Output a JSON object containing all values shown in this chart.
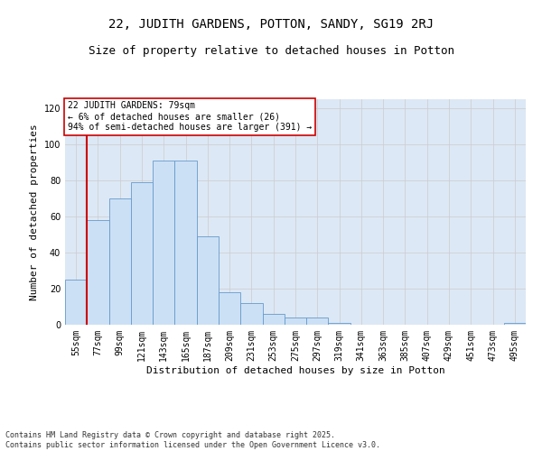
{
  "title": "22, JUDITH GARDENS, POTTON, SANDY, SG19 2RJ",
  "subtitle": "Size of property relative to detached houses in Potton",
  "xlabel": "Distribution of detached houses by size in Potton",
  "ylabel": "Number of detached properties",
  "categories": [
    "55sqm",
    "77sqm",
    "99sqm",
    "121sqm",
    "143sqm",
    "165sqm",
    "187sqm",
    "209sqm",
    "231sqm",
    "253sqm",
    "275sqm",
    "297sqm",
    "319sqm",
    "341sqm",
    "363sqm",
    "385sqm",
    "407sqm",
    "429sqm",
    "451sqm",
    "473sqm",
    "495sqm"
  ],
  "bar_heights": [
    25,
    58,
    70,
    79,
    91,
    91,
    49,
    18,
    12,
    6,
    4,
    4,
    1,
    0,
    0,
    0,
    0,
    0,
    0,
    0,
    1
  ],
  "bar_color": "#cce0f5",
  "bar_edge_color": "#6699cc",
  "reference_line_x": 1,
  "reference_line_color": "#cc0000",
  "annotation_text": "22 JUDITH GARDENS: 79sqm\n← 6% of detached houses are smaller (26)\n94% of semi-detached houses are larger (391) →",
  "annotation_box_color": "#ffffff",
  "annotation_box_edge": "#cc0000",
  "ylim": [
    0,
    125
  ],
  "yticks": [
    0,
    20,
    40,
    60,
    80,
    100,
    120
  ],
  "grid_color": "#cccccc",
  "background_color": "#dce8f5",
  "footer_text": "Contains HM Land Registry data © Crown copyright and database right 2025.\nContains public sector information licensed under the Open Government Licence v3.0.",
  "title_fontsize": 10,
  "subtitle_fontsize": 9,
  "axis_label_fontsize": 8,
  "tick_fontsize": 7,
  "annotation_fontsize": 7,
  "footer_fontsize": 6
}
